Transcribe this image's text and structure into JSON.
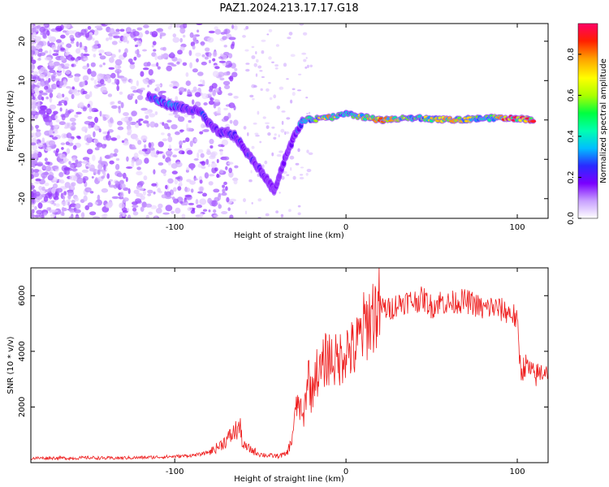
{
  "figure": {
    "title": "PAZ1.2024.213.17.17.G18"
  },
  "colors": {
    "axis": "#000000",
    "snr_line": "#ee1c1c",
    "colormap": [
      "#ffffff",
      "#e2c9ff",
      "#b070ff",
      "#7a00ff",
      "#2a2aff",
      "#00bfff",
      "#00ff7f",
      "#7fff00",
      "#ffff00",
      "#ffa500",
      "#ff2a00",
      "#ff0066"
    ]
  },
  "chart_data": [
    {
      "type": "heatmap",
      "title": "",
      "xlabel": "Height of straight line (km)",
      "ylabel": "Frequency (Hz)",
      "xlim": [
        -184,
        118
      ],
      "ylim": [
        -25,
        24.5
      ],
      "xticks": [
        -100,
        0,
        100
      ],
      "xtick_labels": [
        "-100",
        "0",
        "100"
      ],
      "yticks": [
        -20,
        -10,
        0,
        10,
        20
      ],
      "ytick_labels": [
        "-20",
        "-10",
        "0",
        "10",
        "20"
      ],
      "colorbar": {
        "label": "Normalized spectral amplitude",
        "range": [
          0,
          0.95
        ],
        "ticks": [
          0,
          0.2,
          0.4,
          0.6,
          0.8
        ],
        "tick_labels": [
          "0.0",
          "0.2",
          "0.4",
          "0.6",
          "0.8"
        ]
      },
      "ridge": {
        "description_free_points": [
          {
            "x": -115,
            "f": 6,
            "amp": 0.35
          },
          {
            "x": -105,
            "f": 4,
            "amp": 0.45
          },
          {
            "x": -95,
            "f": 3,
            "amp": 0.3
          },
          {
            "x": -85,
            "f": 2,
            "amp": 0.35
          },
          {
            "x": -80,
            "f": -1,
            "amp": 0.3
          },
          {
            "x": -75,
            "f": -3,
            "amp": 0.3
          },
          {
            "x": -65,
            "f": -4,
            "amp": 0.35
          },
          {
            "x": -55,
            "f": -10,
            "amp": 0.3
          },
          {
            "x": -48,
            "f": -14,
            "amp": 0.3
          },
          {
            "x": -42,
            "f": -18,
            "amp": 0.25
          },
          {
            "x": -35,
            "f": -9,
            "amp": 0.25
          },
          {
            "x": -30,
            "f": -4,
            "amp": 0.3
          },
          {
            "x": -25,
            "f": 0,
            "amp": 0.5
          },
          {
            "x": -10,
            "f": 0.5,
            "amp": 0.7
          },
          {
            "x": 0,
            "f": 1.5,
            "amp": 0.5
          },
          {
            "x": 20,
            "f": 0,
            "amp": 0.75
          },
          {
            "x": 40,
            "f": 0.5,
            "amp": 0.55
          },
          {
            "x": 60,
            "f": 0,
            "amp": 0.7
          },
          {
            "x": 85,
            "f": 0.5,
            "amp": 0.55
          },
          {
            "x": 95,
            "f": 0.5,
            "amp": 0.85
          },
          {
            "x": 110,
            "f": 0,
            "amp": 0.8
          }
        ]
      }
    },
    {
      "type": "line",
      "title": "",
      "xlabel": "Height of straight line (km)",
      "ylabel": "SNR (10 * v/v)",
      "xlim": [
        -184,
        118
      ],
      "ylim": [
        0,
        7000
      ],
      "xticks": [
        -100,
        0,
        100
      ],
      "xtick_labels": [
        "-100",
        "0",
        "100"
      ],
      "yticks": [
        2000,
        4000,
        6000
      ],
      "ytick_labels": [
        "2000",
        "4000",
        "6000"
      ],
      "series": [
        {
          "x": [
            -184,
            -170,
            -160,
            -150,
            -140,
            -130,
            -120,
            -110,
            -100,
            -95,
            -90,
            -85,
            -80,
            -75,
            -70,
            -65,
            -62,
            -60,
            -55,
            -50,
            -45,
            -40,
            -35,
            -32,
            -30,
            -28,
            -25,
            -22,
            -20,
            -18,
            -15,
            -12,
            -10,
            -5,
            0,
            5,
            10,
            15,
            20,
            25,
            30,
            35,
            40,
            45,
            50,
            55,
            60,
            65,
            70,
            75,
            80,
            85,
            90,
            95,
            98,
            100,
            102,
            105,
            110,
            118
          ],
          "values": [
            160,
            170,
            160,
            180,
            160,
            170,
            180,
            200,
            220,
            240,
            260,
            300,
            380,
            550,
            800,
            1100,
            1300,
            600,
            450,
            300,
            250,
            240,
            300,
            700,
            1600,
            2200,
            1500,
            3300,
            2300,
            3300,
            3200,
            3700,
            3800,
            3600,
            4100,
            4000,
            4800,
            5300,
            5600,
            5500,
            5700,
            5800,
            5800,
            5900,
            5600,
            5800,
            5700,
            5800,
            5800,
            5700,
            5500,
            5600,
            5500,
            5400,
            5300,
            5000,
            3300,
            3500,
            3100,
            3400
          ]
        }
      ]
    }
  ]
}
